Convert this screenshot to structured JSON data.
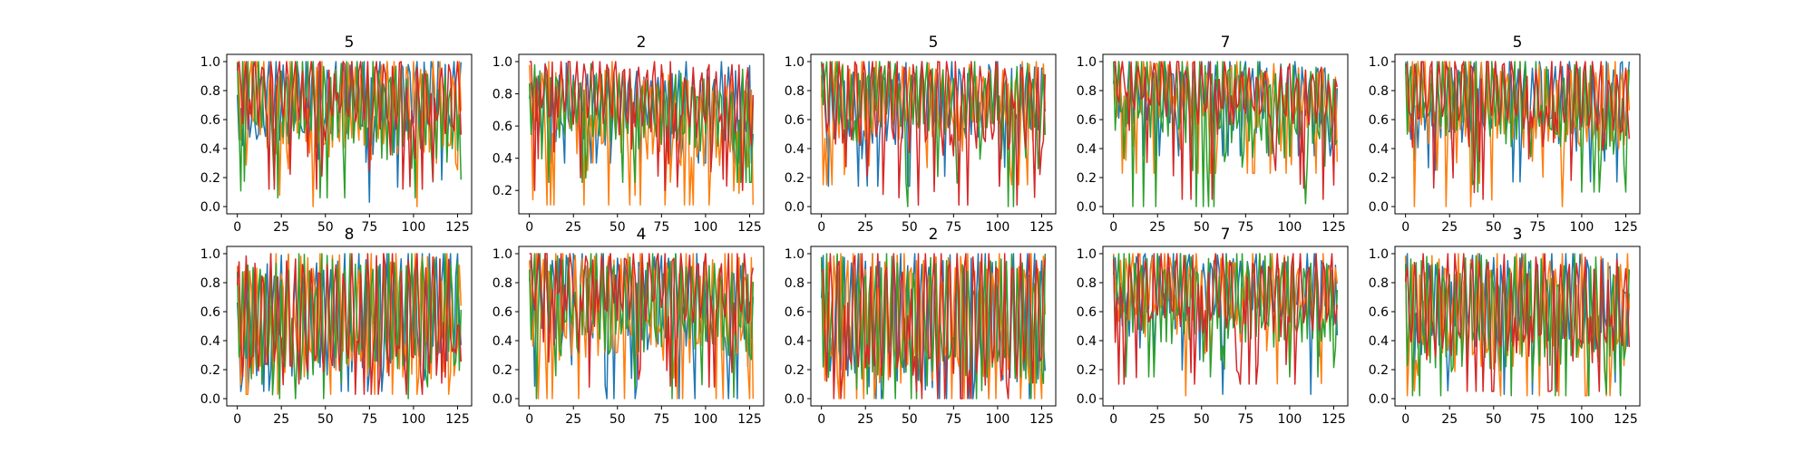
{
  "chart_data": [
    {
      "type": "line",
      "title": "5",
      "x": {
        "start": 0,
        "end": 127
      },
      "xlim": [
        -6,
        133
      ],
      "ylim": [
        -0.05,
        1.05
      ],
      "xticks": [
        "0",
        "25",
        "50",
        "75",
        "100",
        "125"
      ],
      "yticks": [
        "0.0",
        "0.2",
        "0.4",
        "0.6",
        "0.8",
        "1.0"
      ],
      "series": [
        {
          "color": "#1f77b4",
          "level": 0.75,
          "amp": 0.28,
          "period": 4.2,
          "phase": 0.1,
          "trend": 0.04,
          "floor": 0.03
        },
        {
          "color": "#ff7f0e",
          "level": 0.72,
          "amp": 0.32,
          "period": 3.7,
          "phase": 1.2,
          "trend": -0.05,
          "floor": 0.0
        },
        {
          "color": "#2ca02c",
          "level": 0.7,
          "amp": 0.3,
          "period": 3.1,
          "phase": 2.1,
          "trend": -0.06,
          "floor": 0.06
        },
        {
          "color": "#d62728",
          "level": 0.8,
          "amp": 0.22,
          "period": 4.6,
          "phase": 0.7,
          "trend": -0.05,
          "floor": 0.12
        }
      ]
    },
    {
      "type": "line",
      "title": "2",
      "x": {
        "start": 0,
        "end": 127
      },
      "xlim": [
        -6,
        133
      ],
      "ylim": [
        0.055,
        1.045
      ],
      "xticks": [
        "0",
        "25",
        "50",
        "75",
        "100",
        "125"
      ],
      "yticks": [
        "0.2",
        "0.4",
        "0.6",
        "0.8",
        "1.0"
      ],
      "series": [
        {
          "color": "#1f77b4",
          "level": 0.75,
          "amp": 0.2,
          "period": 4.0,
          "phase": 0.2,
          "trend": 0.02,
          "floor": 0.37
        },
        {
          "color": "#ff7f0e",
          "level": 0.68,
          "amp": 0.25,
          "period": 3.6,
          "phase": 1.4,
          "trend": -0.08,
          "floor": 0.11
        },
        {
          "color": "#2ca02c",
          "level": 0.72,
          "amp": 0.22,
          "period": 3.2,
          "phase": 2.4,
          "trend": -0.05,
          "floor": 0.25
        },
        {
          "color": "#d62728",
          "level": 0.8,
          "amp": 0.2,
          "period": 4.4,
          "phase": 0.9,
          "trend": -0.08,
          "floor": 0.2
        }
      ]
    },
    {
      "type": "line",
      "title": "5",
      "x": {
        "start": 0,
        "end": 127
      },
      "xlim": [
        -6,
        133
      ],
      "ylim": [
        -0.05,
        1.05
      ],
      "xticks": [
        "0",
        "25",
        "50",
        "75",
        "100",
        "125"
      ],
      "yticks": [
        "0.0",
        "0.2",
        "0.4",
        "0.6",
        "0.8",
        "1.0"
      ],
      "series": [
        {
          "color": "#1f77b4",
          "level": 0.74,
          "amp": 0.25,
          "period": 4.3,
          "phase": 0.3,
          "trend": 0.03,
          "floor": 0.14
        },
        {
          "color": "#ff7f0e",
          "level": 0.75,
          "amp": 0.24,
          "period": 3.8,
          "phase": 1.1,
          "trend": 0.0,
          "floor": 0.15
        },
        {
          "color": "#2ca02c",
          "level": 0.78,
          "amp": 0.22,
          "period": 3.0,
          "phase": 2.2,
          "trend": -0.05,
          "floor": 0.0
        },
        {
          "color": "#d62728",
          "level": 0.72,
          "amp": 0.3,
          "period": 4.7,
          "phase": 0.6,
          "trend": -0.04,
          "floor": 0.01
        }
      ]
    },
    {
      "type": "line",
      "title": "7",
      "x": {
        "start": 0,
        "end": 127
      },
      "xlim": [
        -6,
        133
      ],
      "ylim": [
        -0.05,
        1.05
      ],
      "xticks": [
        "0",
        "25",
        "50",
        "75",
        "100",
        "125"
      ],
      "yticks": [
        "0.0",
        "0.2",
        "0.4",
        "0.6",
        "0.8",
        "1.0"
      ],
      "series": [
        {
          "color": "#1f77b4",
          "level": 0.78,
          "amp": 0.22,
          "period": 4.1,
          "phase": 0.4,
          "trend": -0.04,
          "floor": 0.35
        },
        {
          "color": "#ff7f0e",
          "level": 0.8,
          "amp": 0.2,
          "period": 3.5,
          "phase": 1.5,
          "trend": -0.06,
          "floor": 0.23
        },
        {
          "color": "#2ca02c",
          "level": 0.72,
          "amp": 0.3,
          "period": 3.3,
          "phase": 2.5,
          "trend": -0.08,
          "floor": 0.0
        },
        {
          "color": "#d62728",
          "level": 0.8,
          "amp": 0.18,
          "period": 4.5,
          "phase": 0.8,
          "trend": -0.06,
          "floor": 0.05
        }
      ]
    },
    {
      "type": "line",
      "title": "5",
      "x": {
        "start": 0,
        "end": 127
      },
      "xlim": [
        -6,
        133
      ],
      "ylim": [
        -0.05,
        1.05
      ],
      "xticks": [
        "0",
        "25",
        "50",
        "75",
        "100",
        "125"
      ],
      "yticks": [
        "0.0",
        "0.2",
        "0.4",
        "0.6",
        "0.8",
        "1.0"
      ],
      "series": [
        {
          "color": "#1f77b4",
          "level": 0.75,
          "amp": 0.26,
          "period": 4.2,
          "phase": 0.5,
          "trend": 0.02,
          "floor": 0.17
        },
        {
          "color": "#ff7f0e",
          "level": 0.73,
          "amp": 0.28,
          "period": 3.6,
          "phase": 1.3,
          "trend": -0.04,
          "floor": 0.0
        },
        {
          "color": "#2ca02c",
          "level": 0.74,
          "amp": 0.26,
          "period": 3.1,
          "phase": 2.3,
          "trend": -0.05,
          "floor": 0.1
        },
        {
          "color": "#d62728",
          "level": 0.78,
          "amp": 0.22,
          "period": 4.6,
          "phase": 0.9,
          "trend": -0.05,
          "floor": 0.05
        }
      ]
    },
    {
      "type": "line",
      "title": "8",
      "x": {
        "start": 0,
        "end": 127
      },
      "xlim": [
        -6,
        133
      ],
      "ylim": [
        -0.05,
        1.05
      ],
      "xticks": [
        "0",
        "25",
        "50",
        "75",
        "100",
        "125"
      ],
      "yticks": [
        "0.0",
        "0.2",
        "0.4",
        "0.6",
        "0.8",
        "1.0"
      ],
      "series": [
        {
          "color": "#1f77b4",
          "level": 0.6,
          "amp": 0.38,
          "period": 4.0,
          "phase": 0.3,
          "trend": 0.08,
          "floor": 0.05
        },
        {
          "color": "#ff7f0e",
          "level": 0.58,
          "amp": 0.4,
          "period": 3.6,
          "phase": 1.2,
          "trend": 0.04,
          "floor": 0.03
        },
        {
          "color": "#2ca02c",
          "level": 0.58,
          "amp": 0.4,
          "period": 3.2,
          "phase": 2.0,
          "trend": 0.04,
          "floor": 0.0
        },
        {
          "color": "#d62728",
          "level": 0.58,
          "amp": 0.4,
          "period": 4.6,
          "phase": 0.8,
          "trend": 0.03,
          "floor": 0.03
        }
      ]
    },
    {
      "type": "line",
      "title": "4",
      "x": {
        "start": 0,
        "end": 127
      },
      "xlim": [
        -6,
        133
      ],
      "ylim": [
        -0.05,
        1.05
      ],
      "xticks": [
        "0",
        "25",
        "50",
        "75",
        "100",
        "125"
      ],
      "yticks": [
        "0.0",
        "0.2",
        "0.4",
        "0.6",
        "0.8",
        "1.0"
      ],
      "series": [
        {
          "color": "#1f77b4",
          "level": 0.7,
          "amp": 0.3,
          "period": 4.1,
          "phase": 0.2,
          "trend": -0.05,
          "floor": 0.0
        },
        {
          "color": "#ff7f0e",
          "level": 0.65,
          "amp": 0.35,
          "period": 3.7,
          "phase": 1.1,
          "trend": -0.02,
          "floor": 0.0
        },
        {
          "color": "#2ca02c",
          "level": 0.68,
          "amp": 0.32,
          "period": 3.2,
          "phase": 2.4,
          "trend": -0.05,
          "floor": 0.0
        },
        {
          "color": "#d62728",
          "level": 0.8,
          "amp": 0.22,
          "period": 4.5,
          "phase": 0.6,
          "trend": -0.06,
          "floor": 0.08
        }
      ]
    },
    {
      "type": "line",
      "title": "2",
      "x": {
        "start": 0,
        "end": 127
      },
      "xlim": [
        -6,
        133
      ],
      "ylim": [
        -0.05,
        1.05
      ],
      "xticks": [
        "0",
        "25",
        "50",
        "75",
        "100",
        "125"
      ],
      "yticks": [
        "0.0",
        "0.2",
        "0.4",
        "0.6",
        "0.8",
        "1.0"
      ],
      "series": [
        {
          "color": "#1f77b4",
          "level": 0.55,
          "amp": 0.45,
          "period": 4.0,
          "phase": 0.4,
          "trend": 0.0,
          "floor": 0.0
        },
        {
          "color": "#ff7f0e",
          "level": 0.58,
          "amp": 0.42,
          "period": 3.6,
          "phase": 1.3,
          "trend": 0.0,
          "floor": 0.0
        },
        {
          "color": "#2ca02c",
          "level": 0.55,
          "amp": 0.45,
          "period": 3.1,
          "phase": 2.2,
          "trend": 0.0,
          "floor": 0.0
        },
        {
          "color": "#d62728",
          "level": 0.58,
          "amp": 0.42,
          "period": 4.5,
          "phase": 0.7,
          "trend": 0.0,
          "floor": 0.0
        }
      ]
    },
    {
      "type": "line",
      "title": "7",
      "x": {
        "start": 0,
        "end": 127
      },
      "xlim": [
        -6,
        133
      ],
      "ylim": [
        -0.05,
        1.05
      ],
      "xticks": [
        "0",
        "25",
        "50",
        "75",
        "100",
        "125"
      ],
      "yticks": [
        "0.0",
        "0.2",
        "0.4",
        "0.6",
        "0.8",
        "1.0"
      ],
      "series": [
        {
          "color": "#1f77b4",
          "level": 0.78,
          "amp": 0.22,
          "period": 4.2,
          "phase": 0.5,
          "trend": -0.03,
          "floor": 0.03
        },
        {
          "color": "#ff7f0e",
          "level": 0.78,
          "amp": 0.22,
          "period": 3.6,
          "phase": 1.4,
          "trend": -0.04,
          "floor": 0.02
        },
        {
          "color": "#2ca02c",
          "level": 0.7,
          "amp": 0.3,
          "period": 3.2,
          "phase": 2.3,
          "trend": -0.03,
          "floor": 0.15
        },
        {
          "color": "#d62728",
          "level": 0.75,
          "amp": 0.25,
          "period": 4.4,
          "phase": 0.8,
          "trend": -0.03,
          "floor": 0.1
        }
      ]
    },
    {
      "type": "line",
      "title": "3",
      "x": {
        "start": 0,
        "end": 127
      },
      "xlim": [
        -6,
        133
      ],
      "ylim": [
        -0.05,
        1.05
      ],
      "xticks": [
        "0",
        "25",
        "50",
        "75",
        "100",
        "125"
      ],
      "yticks": [
        "0.0",
        "0.2",
        "0.4",
        "0.6",
        "0.8",
        "1.0"
      ],
      "series": [
        {
          "color": "#1f77b4",
          "level": 0.7,
          "amp": 0.3,
          "period": 4.1,
          "phase": 0.3,
          "trend": 0.03,
          "floor": 0.03
        },
        {
          "color": "#ff7f0e",
          "level": 0.62,
          "amp": 0.36,
          "period": 3.7,
          "phase": 1.2,
          "trend": 0.0,
          "floor": 0.02
        },
        {
          "color": "#2ca02c",
          "level": 0.6,
          "amp": 0.38,
          "period": 3.1,
          "phase": 2.1,
          "trend": 0.0,
          "floor": 0.02
        },
        {
          "color": "#d62728",
          "level": 0.65,
          "amp": 0.32,
          "period": 4.6,
          "phase": 0.6,
          "trend": 0.0,
          "floor": 0.05
        }
      ]
    }
  ]
}
